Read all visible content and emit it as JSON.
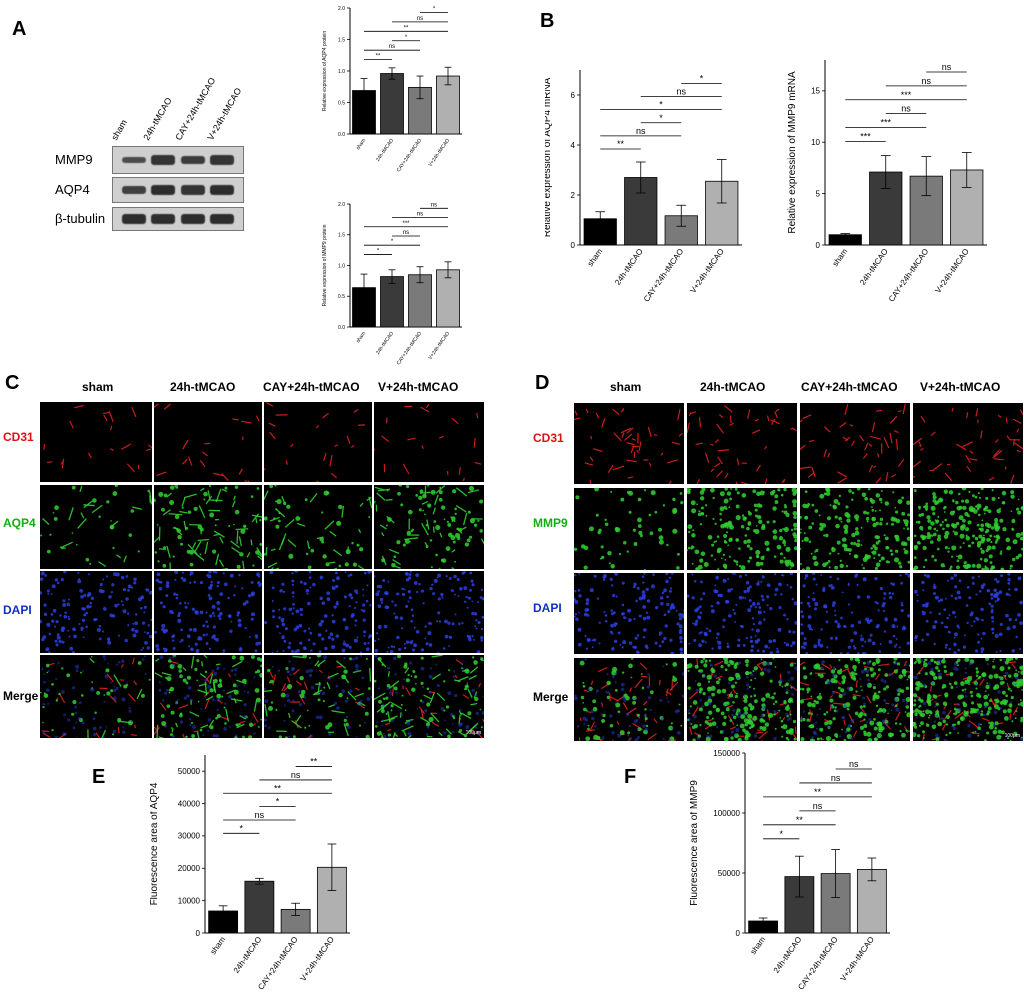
{
  "panels": {
    "A": "A",
    "B": "B",
    "C": "C",
    "D": "D",
    "E": "E",
    "F": "F"
  },
  "groups": [
    "sham",
    "24h-tMCAO",
    "CAY+24h-tMCAO",
    "V+24h-tMCAO"
  ],
  "western_blot": {
    "lane_labels": [
      "sham",
      "24h-tMCAO",
      "CAY+24h-tMCAO",
      "V+24h-tMCAO"
    ],
    "rows": [
      {
        "label": "MMP9",
        "intensity": [
          0.55,
          0.85,
          0.75,
          0.85
        ]
      },
      {
        "label": "AQP4",
        "intensity": [
          0.7,
          0.95,
          0.85,
          0.95
        ]
      },
      {
        "label": "β-tubulin",
        "intensity": [
          0.95,
          0.95,
          0.95,
          0.95
        ]
      }
    ]
  },
  "if_C": {
    "columns": [
      "sham",
      "24h-tMCAO",
      "CAY+24h-tMCAO",
      "V+24h-tMCAO"
    ],
    "rows": [
      {
        "label": "CD31",
        "color": "#e01010"
      },
      {
        "label": "AQP4",
        "color": "#10b010"
      },
      {
        "label": "DAPI",
        "color": "#1030c0"
      },
      {
        "label": "Merge",
        "color": "#000000"
      }
    ],
    "scale_bar": "100μm"
  },
  "if_D": {
    "columns": [
      "sham",
      "24h-tMCAO",
      "CAY+24h-tMCAO",
      "V+24h-tMCAO"
    ],
    "rows": [
      {
        "label": "CD31",
        "color": "#e01010"
      },
      {
        "label": "MMP9",
        "color": "#10b010"
      },
      {
        "label": "DAPI",
        "color": "#1030c0"
      },
      {
        "label": "Merge",
        "color": "#000000"
      }
    ],
    "scale_bar": "100μm"
  },
  "bar_colors": [
    "#000000",
    "#3a3a3a",
    "#7a7a7a",
    "#b0b0b0"
  ],
  "chart_data": [
    {
      "id": "A1",
      "type": "bar",
      "categories": [
        "sham",
        "24h-tMCAO",
        "CAY+24h-tMCAO",
        "V+24h-tMCAO"
      ],
      "values": [
        0.69,
        0.96,
        0.74,
        0.92
      ],
      "errors": [
        0.19,
        0.09,
        0.18,
        0.14
      ],
      "ylabel": "Relative expression of AQP4 protein",
      "ylim": [
        0,
        2.0
      ],
      "yticks": [
        "0.0",
        "0.5",
        "1.0",
        "1.5",
        "2.0"
      ],
      "comparisons": [
        {
          "a": 0,
          "b": 1,
          "label": "**"
        },
        {
          "a": 0,
          "b": 2,
          "label": "ns"
        },
        {
          "a": 0,
          "b": 3,
          "label": "**"
        },
        {
          "a": 1,
          "b": 2,
          "label": "*"
        },
        {
          "a": 1,
          "b": 3,
          "label": "ns"
        },
        {
          "a": 2,
          "b": 3,
          "label": "*"
        }
      ]
    },
    {
      "id": "A2",
      "type": "bar",
      "categories": [
        "sham",
        "24h-tMCAO",
        "CAY+24h-tMCAO",
        "V+24h-tMCAO"
      ],
      "values": [
        0.64,
        0.82,
        0.85,
        0.93
      ],
      "errors": [
        0.22,
        0.11,
        0.13,
        0.13
      ],
      "ylabel": "Relative expression of MMP9 protein",
      "ylim": [
        0,
        2.0
      ],
      "yticks": [
        "0.0",
        "0.5",
        "1.0",
        "1.5",
        "2.0"
      ],
      "comparisons": [
        {
          "a": 0,
          "b": 1,
          "label": "*"
        },
        {
          "a": 0,
          "b": 2,
          "label": "*"
        },
        {
          "a": 0,
          "b": 3,
          "label": "***"
        },
        {
          "a": 1,
          "b": 2,
          "label": "ns"
        },
        {
          "a": 1,
          "b": 3,
          "label": "ns"
        },
        {
          "a": 2,
          "b": 3,
          "label": "ns"
        }
      ]
    },
    {
      "id": "B1",
      "type": "bar",
      "categories": [
        "sham",
        "24h-tMCAO",
        "CAY+24h-tMCAO",
        "V+24h-tMCAO"
      ],
      "values": [
        1.05,
        2.7,
        1.17,
        2.55
      ],
      "errors": [
        0.28,
        0.62,
        0.42,
        0.87
      ],
      "ylabel": "Relative expression of  AQP4 mRNA",
      "ylim": [
        0,
        7
      ],
      "yticks": [
        "0",
        "2",
        "4",
        "6"
      ],
      "comparisons": [
        {
          "a": 0,
          "b": 1,
          "label": "**"
        },
        {
          "a": 0,
          "b": 2,
          "label": "ns"
        },
        {
          "a": 0,
          "b": 3,
          "label": "*"
        },
        {
          "a": 1,
          "b": 2,
          "label": "*"
        },
        {
          "a": 1,
          "b": 3,
          "label": "ns"
        },
        {
          "a": 2,
          "b": 3,
          "label": "*"
        }
      ]
    },
    {
      "id": "B2",
      "type": "bar",
      "categories": [
        "sham",
        "24h-tMCAO",
        "CAY+24h-tMCAO",
        "V+24h-tMCAO"
      ],
      "values": [
        1.0,
        7.1,
        6.7,
        7.3
      ],
      "errors": [
        0.12,
        1.6,
        1.9,
        1.7
      ],
      "ylabel": "Relative expression of  MMP9 mRNA",
      "ylim": [
        0,
        18
      ],
      "yticks": [
        "0",
        "5",
        "10",
        "15"
      ],
      "comparisons": [
        {
          "a": 0,
          "b": 1,
          "label": "***"
        },
        {
          "a": 0,
          "b": 2,
          "label": "***"
        },
        {
          "a": 0,
          "b": 3,
          "label": "***"
        },
        {
          "a": 1,
          "b": 2,
          "label": "ns"
        },
        {
          "a": 1,
          "b": 3,
          "label": "ns"
        },
        {
          "a": 2,
          "b": 3,
          "label": "ns"
        }
      ]
    },
    {
      "id": "E",
      "type": "bar",
      "categories": [
        "sham",
        "24h-tMCAO",
        "CAY+24h-tMCAO",
        "V+24h-tMCAO"
      ],
      "values": [
        6800,
        16000,
        7300,
        20300
      ],
      "errors": [
        1600,
        900,
        1900,
        7200
      ],
      "ylabel": "Fluorescence area of AQP4",
      "ylim": [
        0,
        55000
      ],
      "yticks": [
        "0",
        "10000",
        "20000",
        "30000",
        "40000",
        "50000"
      ],
      "comparisons": [
        {
          "a": 0,
          "b": 1,
          "label": "*"
        },
        {
          "a": 0,
          "b": 2,
          "label": "ns"
        },
        {
          "a": 0,
          "b": 3,
          "label": "**"
        },
        {
          "a": 1,
          "b": 2,
          "label": "*"
        },
        {
          "a": 1,
          "b": 3,
          "label": "ns"
        },
        {
          "a": 2,
          "b": 3,
          "label": "**"
        }
      ]
    },
    {
      "id": "F",
      "type": "bar",
      "categories": [
        "sham",
        "24h-tMCAO",
        "CAY+24h-tMCAO",
        "V+24h-tMCAO"
      ],
      "values": [
        10000,
        47000,
        49500,
        53000
      ],
      "errors": [
        2500,
        17000,
        20000,
        9500
      ],
      "ylabel": "Fluorescence area of MMP9",
      "ylim": [
        0,
        150000
      ],
      "yticks": [
        "0",
        "50000",
        "100000",
        "150000"
      ],
      "comparisons": [
        {
          "a": 0,
          "b": 1,
          "label": "*"
        },
        {
          "a": 0,
          "b": 2,
          "label": "**"
        },
        {
          "a": 0,
          "b": 3,
          "label": "**"
        },
        {
          "a": 1,
          "b": 2,
          "label": "ns"
        },
        {
          "a": 1,
          "b": 3,
          "label": "ns"
        },
        {
          "a": 2,
          "b": 3,
          "label": "ns"
        }
      ]
    }
  ]
}
